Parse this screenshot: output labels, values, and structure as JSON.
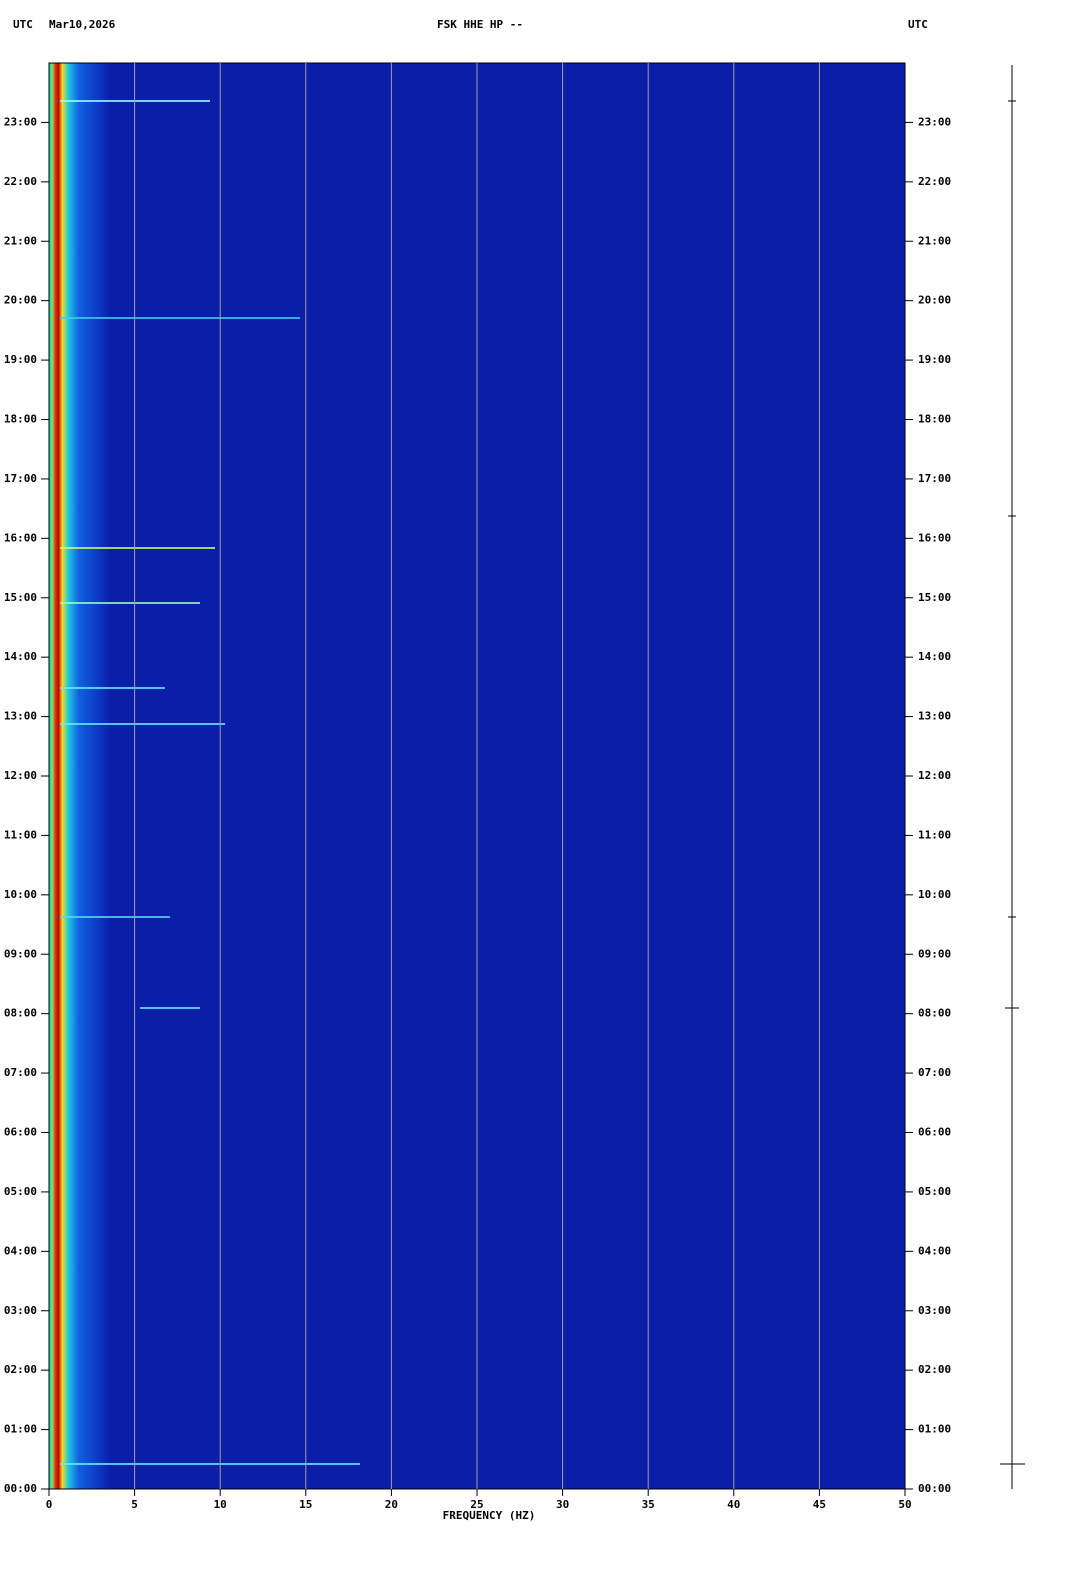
{
  "header": {
    "zone_left": "UTC",
    "date": "Mar10,2026",
    "station": "FSK HHE HP --",
    "zone_right": "UTC"
  },
  "chart_data": {
    "type": "spectrogram",
    "xlabel": "FREQUENCY (HZ)",
    "xlim": [
      0,
      50
    ],
    "xticks": [
      0,
      5,
      10,
      15,
      20,
      25,
      30,
      35,
      40,
      45,
      50
    ],
    "ylim": [
      0,
      24
    ],
    "yticks": [
      {
        "value": 0,
        "label": "00:00"
      },
      {
        "value": 1,
        "label": "01:00"
      },
      {
        "value": 2,
        "label": "02:00"
      },
      {
        "value": 3,
        "label": "03:00"
      },
      {
        "value": 4,
        "label": "04:00"
      },
      {
        "value": 5,
        "label": "05:00"
      },
      {
        "value": 6,
        "label": "06:00"
      },
      {
        "value": 7,
        "label": "07:00"
      },
      {
        "value": 8,
        "label": "08:00"
      },
      {
        "value": 9,
        "label": "09:00"
      },
      {
        "value": 10,
        "label": "10:00"
      },
      {
        "value": 11,
        "label": "11:00"
      },
      {
        "value": 12,
        "label": "12:00"
      },
      {
        "value": 13,
        "label": "13:00"
      },
      {
        "value": 14,
        "label": "14:00"
      },
      {
        "value": 15,
        "label": "15:00"
      },
      {
        "value": 16,
        "label": "16:00"
      },
      {
        "value": 17,
        "label": "17:00"
      },
      {
        "value": 18,
        "label": "18:00"
      },
      {
        "value": 19,
        "label": "19:00"
      },
      {
        "value": 20,
        "label": "20:00"
      },
      {
        "value": 21,
        "label": "21:00"
      },
      {
        "value": 22,
        "label": "22:00"
      },
      {
        "value": 23,
        "label": "23:00"
      }
    ],
    "grid": true
  }
}
